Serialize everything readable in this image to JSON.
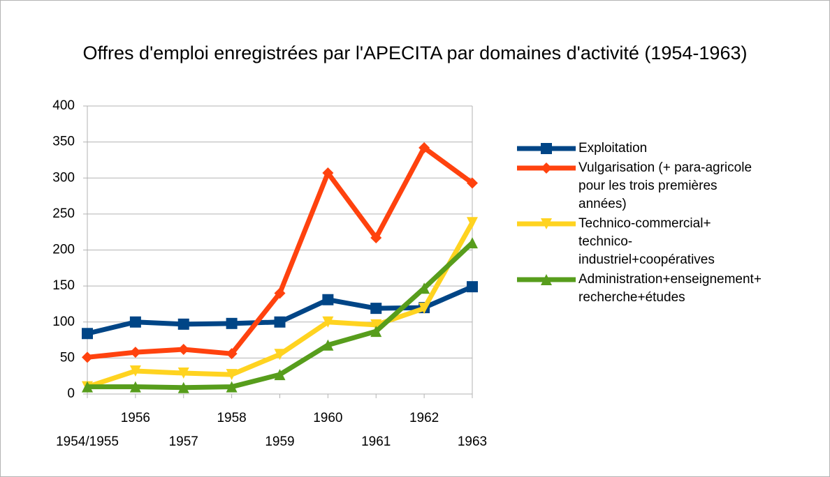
{
  "chart_data": {
    "type": "line",
    "title": "Offres d'emploi enregistrées par l'APECITA par domaines d'activité (1954-1963)",
    "categories": [
      "1954/1955",
      "1956",
      "1957",
      "1958",
      "1959",
      "1960",
      "1961",
      "1962",
      "1963"
    ],
    "series": [
      {
        "name": "Exploitation",
        "color": "#004586",
        "marker": "square",
        "values": [
          84,
          100,
          97,
          98,
          100,
          131,
          119,
          120,
          149
        ]
      },
      {
        "name": "Vulgarisation (+ para-agricole pour les trois premières années)",
        "color": "#ff420e",
        "marker": "diamond",
        "values": [
          51,
          58,
          62,
          56,
          140,
          307,
          217,
          342,
          293
        ]
      },
      {
        "name": "Technico-commercial+ technico-industriel+coopératives",
        "color": "#ffd320",
        "marker": "triangle-down",
        "values": [
          10,
          32,
          29,
          27,
          55,
          100,
          96,
          119,
          238
        ]
      },
      {
        "name": "Administration+enseignement+ recherche+études",
        "color": "#579d1c",
        "marker": "triangle-up",
        "values": [
          10,
          10,
          9,
          10,
          27,
          68,
          87,
          147,
          210
        ]
      }
    ],
    "ylim": [
      0,
      400
    ],
    "yticks": [
      0,
      50,
      100,
      150,
      200,
      250,
      300,
      350,
      400
    ],
    "grid": true,
    "legend": "right"
  }
}
